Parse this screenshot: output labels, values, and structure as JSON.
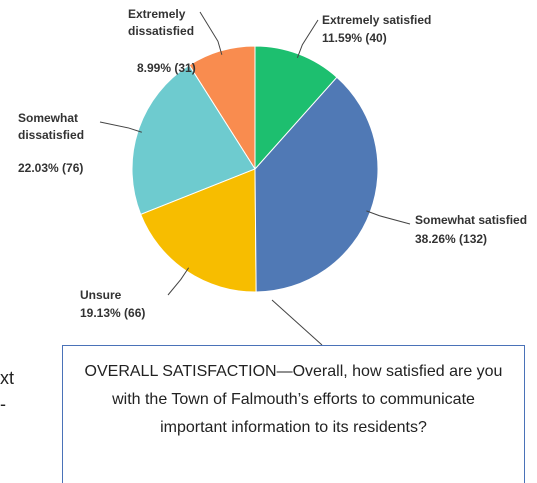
{
  "chart_data": {
    "type": "pie",
    "categories": [
      "Extremely satisfied",
      "Somewhat satisfied",
      "Unsure",
      "Somewhat dissatisfied",
      "Extremely dissatisfied"
    ],
    "values": [
      11.59,
      38.26,
      19.13,
      22.03,
      8.99
    ],
    "value_labels": [
      "11.59% (40)",
      "38.26% (132)",
      "19.13% (66)",
      "22.03% (76)",
      "8.99% (31)"
    ],
    "colors": [
      "#1dbf6f",
      "#5079b5",
      "#f7bd00",
      "#6ecbcf",
      "#f98c4f"
    ],
    "caption": "OVERALL SATISFACTION—Overall, how satisfied are you with the Town of Falmouth’s efforts to communicate important information to its residents?",
    "background_text": [
      "xt",
      "-"
    ]
  }
}
